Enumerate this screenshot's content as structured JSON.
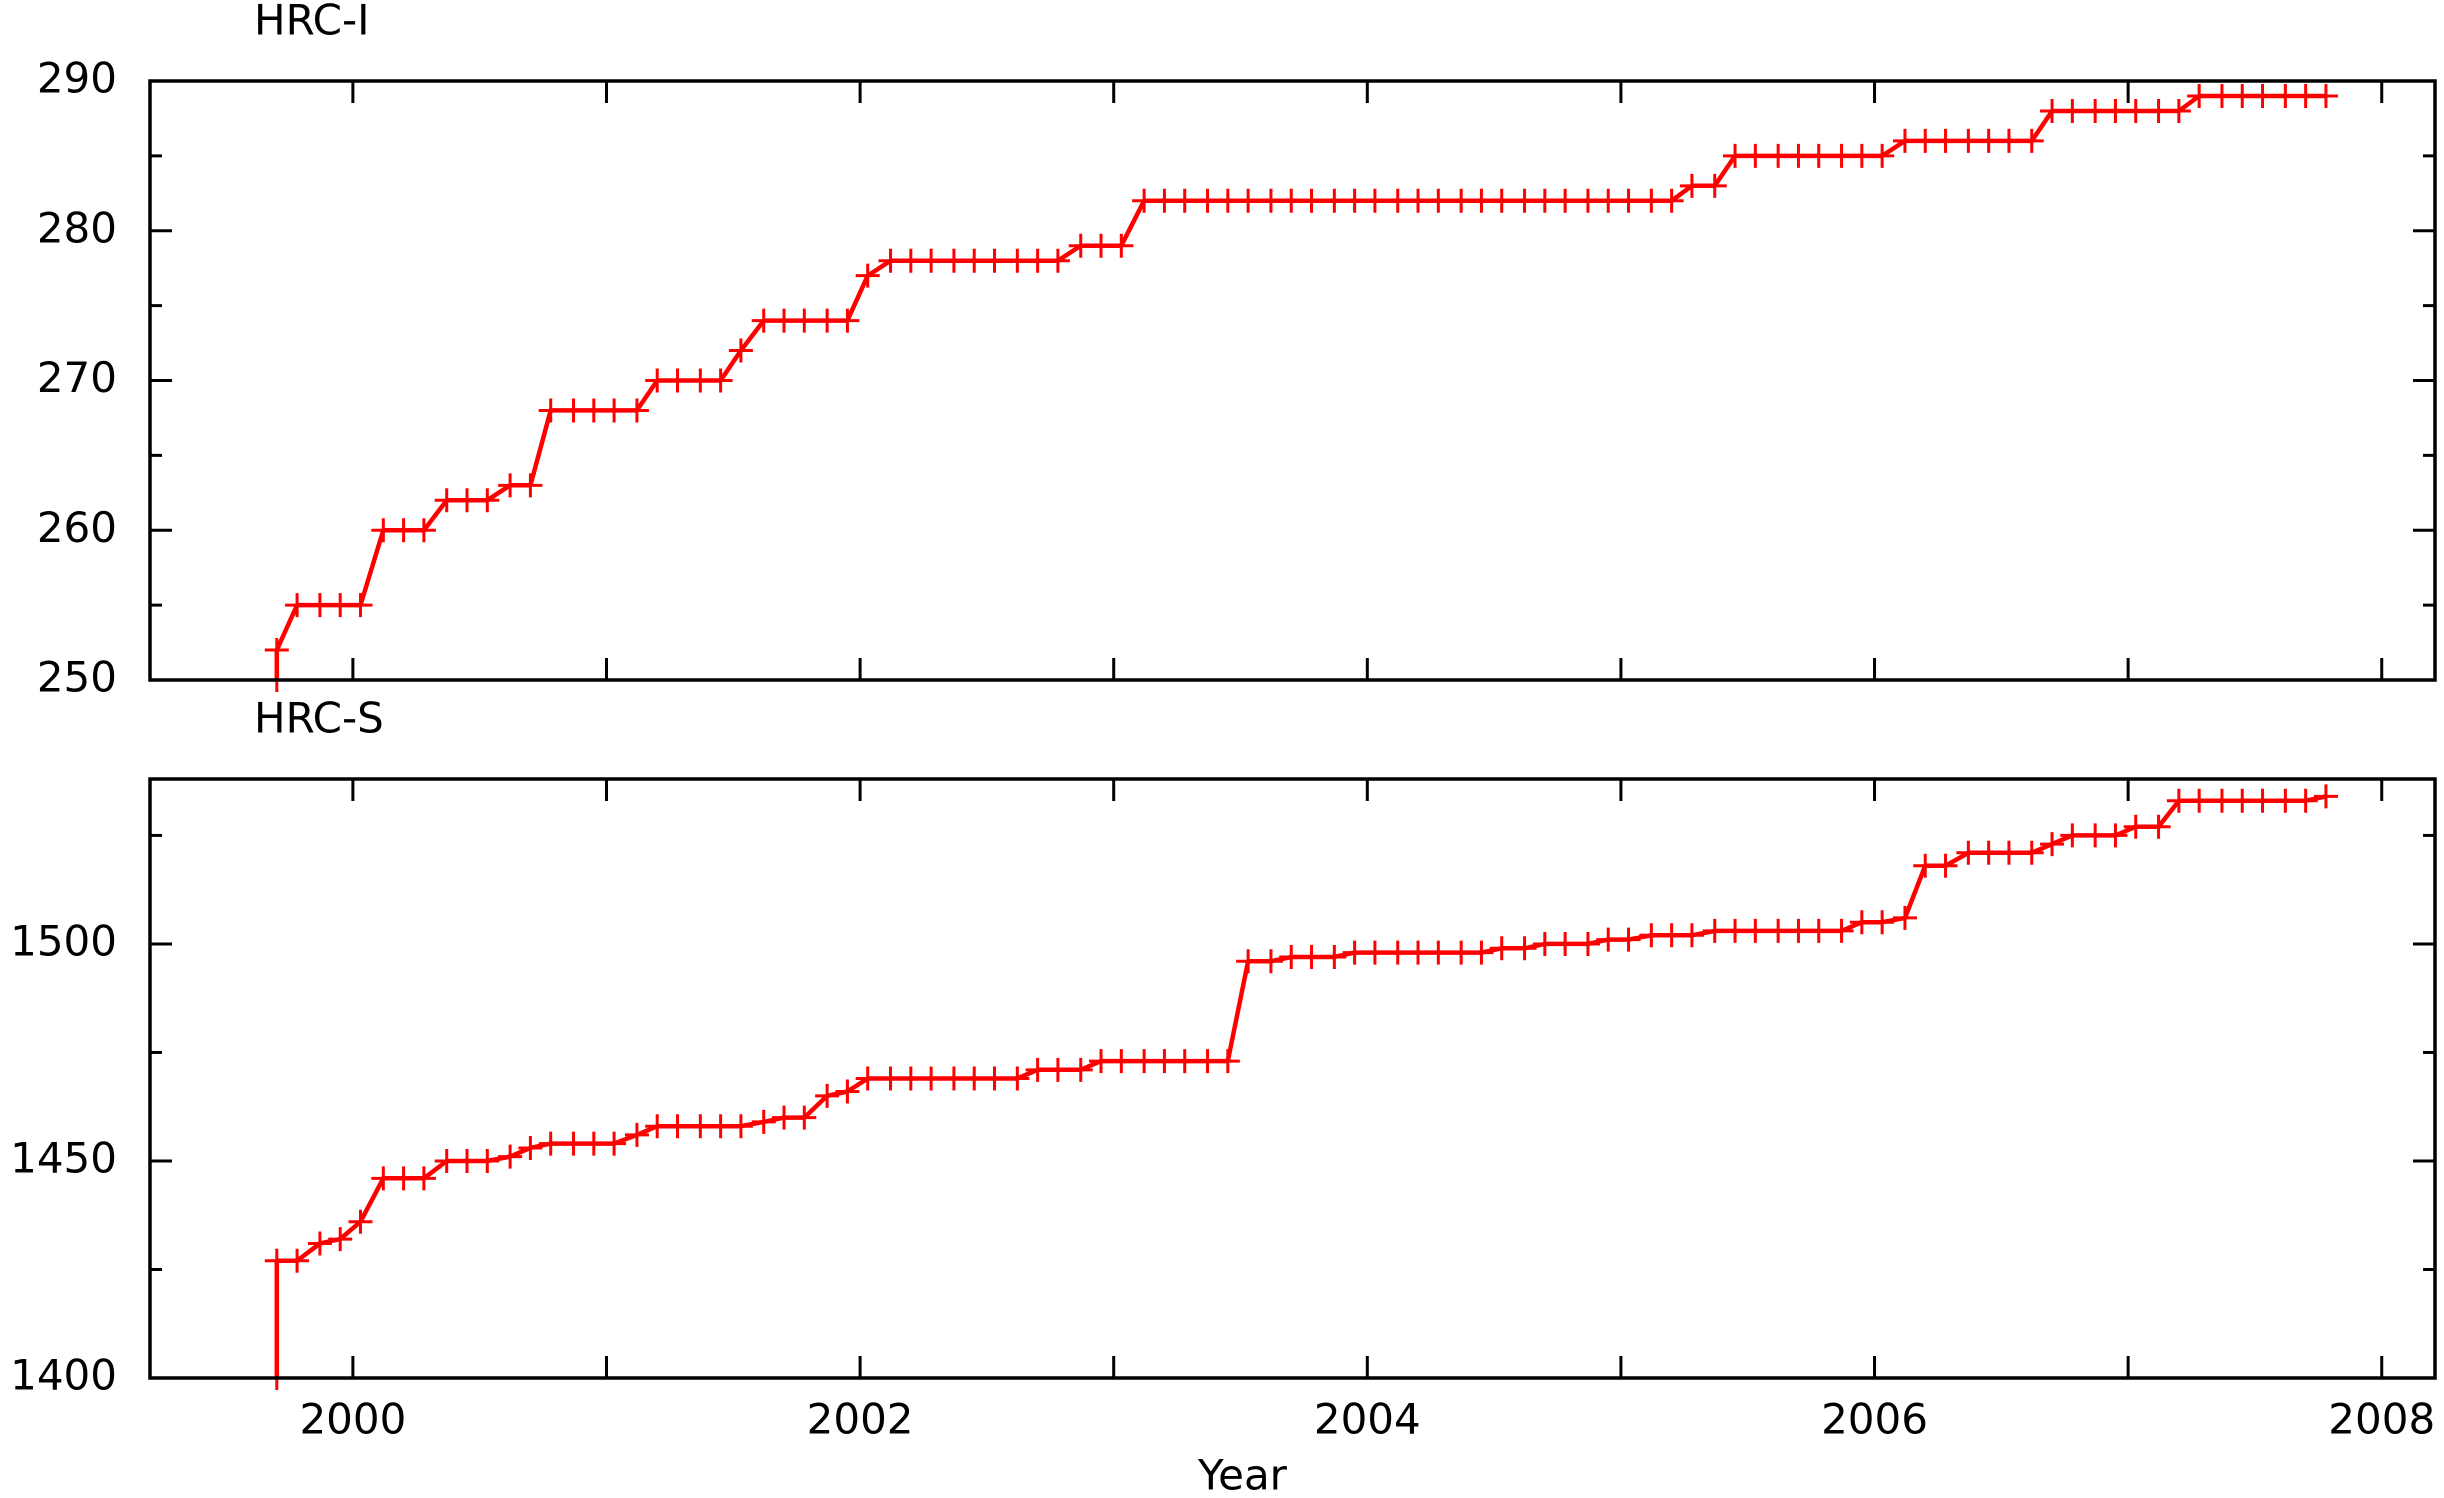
{
  "chart_data": [
    {
      "type": "line",
      "title": "HRC-I",
      "color": "#ff0000",
      "marker": "plus",
      "x": [
        1999.7,
        1999.7,
        1999.78,
        1999.87,
        1999.95,
        2000.03,
        2000.12,
        2000.2,
        2000.28,
        2000.37,
        2000.45,
        2000.53,
        2000.62,
        2000.7,
        2000.78,
        2000.87,
        2000.95,
        2001.03,
        2001.12,
        2001.2,
        2001.28,
        2001.37,
        2001.45,
        2001.53,
        2001.62,
        2001.7,
        2001.78,
        2001.87,
        2001.95,
        2002.03,
        2002.12,
        2002.2,
        2002.28,
        2002.37,
        2002.45,
        2002.53,
        2002.62,
        2002.7,
        2002.78,
        2002.87,
        2002.95,
        2003.03,
        2003.12,
        2003.2,
        2003.28,
        2003.37,
        2003.45,
        2003.53,
        2003.62,
        2003.7,
        2003.78,
        2003.87,
        2003.95,
        2004.03,
        2004.12,
        2004.2,
        2004.28,
        2004.37,
        2004.45,
        2004.53,
        2004.62,
        2004.7,
        2004.78,
        2004.87,
        2004.95,
        2005.03,
        2005.12,
        2005.2,
        2005.28,
        2005.37,
        2005.45,
        2005.53,
        2005.62,
        2005.7,
        2005.78,
        2005.87,
        2005.95,
        2006.03,
        2006.12,
        2006.2,
        2006.28,
        2006.37,
        2006.45,
        2006.53,
        2006.62,
        2006.7,
        2006.78,
        2006.87,
        2006.95,
        2007.03,
        2007.12,
        2007.2,
        2007.28,
        2007.37,
        2007.45,
        2007.53,
        2007.62,
        2007.7,
        2007.78
      ],
      "values": [
        250,
        252,
        255,
        255,
        255,
        255,
        260,
        260,
        260,
        262,
        262,
        262,
        263,
        263,
        268,
        268,
        268,
        268,
        268,
        270,
        270,
        270,
        270,
        272,
        274,
        274,
        274,
        274,
        274,
        277,
        278,
        278,
        278,
        278,
        278,
        278,
        278,
        278,
        278,
        279,
        279,
        279,
        282,
        282,
        282,
        282,
        282,
        282,
        282,
        282,
        282,
        282,
        282,
        282,
        282,
        282,
        282,
        282,
        282,
        282,
        282,
        282,
        282,
        282,
        282,
        282,
        282,
        282,
        283,
        283,
        285,
        285,
        285,
        285,
        285,
        285,
        285,
        285,
        286,
        286,
        286,
        286,
        286,
        286,
        286,
        288,
        288,
        288,
        288,
        288,
        288,
        288,
        289,
        289,
        289,
        289,
        289,
        289,
        289
      ],
      "xlim": [
        1999.2,
        2008.21
      ],
      "xticks": [
        2000,
        2002,
        2004,
        2006,
        2008
      ],
      "xminorticks": [
        2001,
        2003,
        2005,
        2007
      ],
      "xtick_labels": false,
      "ylim": [
        250,
        290
      ],
      "yticks": [
        250,
        260,
        270,
        280,
        290
      ],
      "yminorticks": [
        255,
        265,
        275,
        285
      ]
    },
    {
      "type": "line",
      "title": "HRC-S",
      "xlabel": "Year",
      "color": "#ff0000",
      "marker": "plus",
      "x": [
        1999.7,
        1999.7,
        1999.78,
        1999.87,
        1999.95,
        2000.03,
        2000.12,
        2000.2,
        2000.28,
        2000.37,
        2000.45,
        2000.53,
        2000.62,
        2000.7,
        2000.78,
        2000.87,
        2000.95,
        2001.03,
        2001.12,
        2001.2,
        2001.28,
        2001.37,
        2001.45,
        2001.53,
        2001.62,
        2001.7,
        2001.78,
        2001.87,
        2001.95,
        2002.03,
        2002.12,
        2002.2,
        2002.28,
        2002.37,
        2002.45,
        2002.53,
        2002.62,
        2002.7,
        2002.78,
        2002.87,
        2002.95,
        2003.03,
        2003.12,
        2003.2,
        2003.28,
        2003.37,
        2003.45,
        2003.53,
        2003.62,
        2003.7,
        2003.78,
        2003.87,
        2003.95,
        2004.03,
        2004.12,
        2004.2,
        2004.28,
        2004.37,
        2004.45,
        2004.53,
        2004.62,
        2004.7,
        2004.78,
        2004.87,
        2004.95,
        2005.03,
        2005.12,
        2005.2,
        2005.28,
        2005.37,
        2005.45,
        2005.53,
        2005.62,
        2005.7,
        2005.78,
        2005.87,
        2005.95,
        2006.03,
        2006.12,
        2006.2,
        2006.28,
        2006.37,
        2006.45,
        2006.53,
        2006.62,
        2006.7,
        2006.78,
        2006.87,
        2006.95,
        2007.03,
        2007.12,
        2007.2,
        2007.28,
        2007.37,
        2007.45,
        2007.53,
        2007.62,
        2007.7,
        2007.78
      ],
      "values": [
        1400,
        1427,
        1427,
        1431,
        1432,
        1436,
        1446,
        1446,
        1446,
        1450,
        1450,
        1450,
        1451,
        1453,
        1454,
        1454,
        1454,
        1454,
        1456,
        1458,
        1458,
        1458,
        1458,
        1458,
        1459,
        1460,
        1460,
        1465,
        1466,
        1469,
        1469,
        1469,
        1469,
        1469,
        1469,
        1469,
        1469,
        1471,
        1471,
        1471,
        1473,
        1473,
        1473,
        1473,
        1473,
        1473,
        1473,
        1496,
        1496,
        1497,
        1497,
        1497,
        1498,
        1498,
        1498,
        1498,
        1498,
        1498,
        1498,
        1499,
        1499,
        1500,
        1500,
        1500,
        1501,
        1501,
        1502,
        1502,
        1502,
        1503,
        1503,
        1503,
        1503,
        1503,
        1503,
        1503,
        1505,
        1505,
        1506,
        1518,
        1518,
        1521,
        1521,
        1521,
        1521,
        1523,
        1525,
        1525,
        1525,
        1527,
        1527,
        1533,
        1533,
        1533,
        1533,
        1533,
        1533,
        1533,
        1534
      ],
      "xlim": [
        1999.2,
        2008.21
      ],
      "xticks": [
        2000,
        2002,
        2004,
        2006,
        2008
      ],
      "xminorticks": [
        2001,
        2003,
        2005,
        2007
      ],
      "xtick_labels": true,
      "ylim": [
        1400,
        1538
      ],
      "yticks": [
        1400,
        1450,
        1500
      ],
      "yminorticks": [
        1425,
        1475,
        1525
      ]
    }
  ]
}
